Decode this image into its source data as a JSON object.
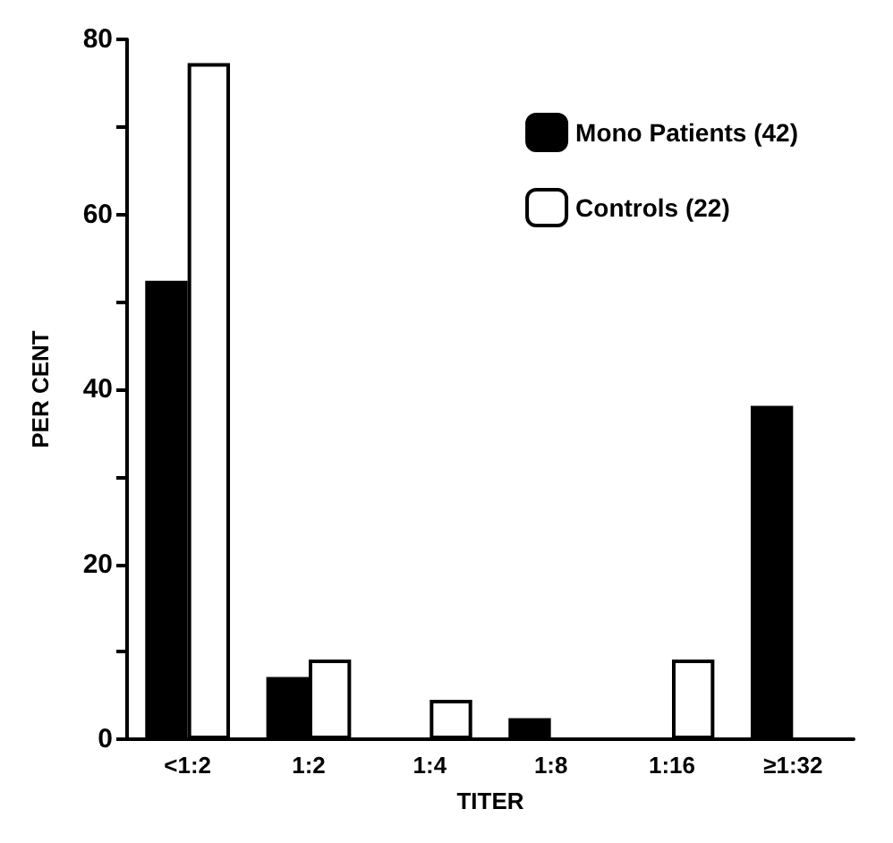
{
  "chart_data": {
    "type": "bar",
    "xlabel": "TITER",
    "ylabel": "PER CENT",
    "categories": [
      "<1:2",
      "1:2",
      "1:4",
      "1:8",
      "1:16",
      "≥1:32"
    ],
    "series": [
      {
        "name": "Mono Patients (42)",
        "color": "#000000",
        "values": [
          52.4,
          7.1,
          0,
          2.4,
          0,
          38.1
        ]
      },
      {
        "name": "Controls (22)",
        "color": "#ffffff",
        "values": [
          77.3,
          9.1,
          4.5,
          0,
          9.1,
          0
        ]
      }
    ],
    "ylim": [
      0,
      80
    ],
    "yticks": [
      0,
      {
        "value": 10,
        "label": null
      },
      20,
      {
        "value": 30,
        "label": null
      },
      40,
      {
        "value": 50,
        "label": null
      },
      60,
      {
        "value": 70,
        "label": null
      },
      80
    ],
    "grid": false,
    "legend": "top right"
  }
}
